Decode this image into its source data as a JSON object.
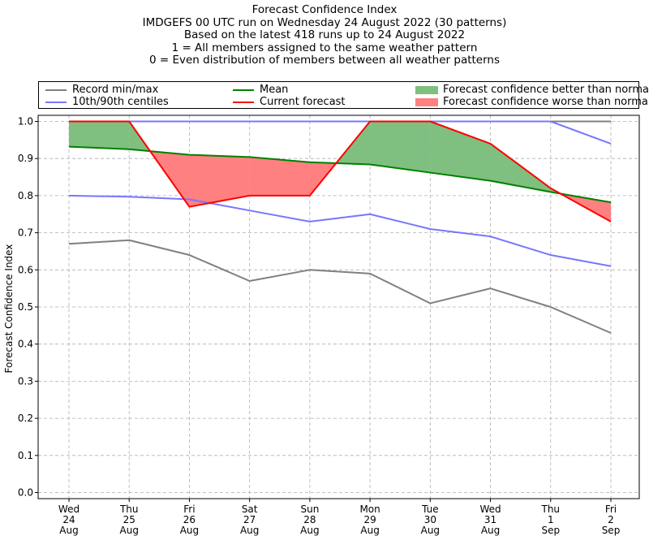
{
  "chart_data": {
    "type": "line",
    "title_lines": [
      "Forecast Confidence Index",
      "IMDGEFS 00 UTC run on Wednesday 24 August 2022 (30 patterns)",
      "Based on the latest 418 runs up to 24 August 2022",
      "1 = All members assigned to the same weather pattern",
      "0 = Even distribution of members between all weather patterns"
    ],
    "ylabel": "Forecast Confidence Index",
    "xlabel": "",
    "ylim": [
      0,
      1.0
    ],
    "yticks": [
      "0.0",
      "0.1",
      "0.2",
      "0.3",
      "0.4",
      "0.5",
      "0.6",
      "0.7",
      "0.8",
      "0.9",
      "1.0"
    ],
    "ytick_values": [
      0,
      0.1,
      0.2,
      0.3,
      0.4,
      0.5,
      0.6,
      0.7,
      0.8,
      0.9,
      1.0
    ],
    "grid": true,
    "categories": [
      [
        "Wed",
        "24",
        "Aug"
      ],
      [
        "Thu",
        "25",
        "Aug"
      ],
      [
        "Fri",
        "26",
        "Aug"
      ],
      [
        "Sat",
        "27",
        "Aug"
      ],
      [
        "Sun",
        "28",
        "Aug"
      ],
      [
        "Mon",
        "29",
        "Aug"
      ],
      [
        "Tue",
        "30",
        "Aug"
      ],
      [
        "Wed",
        "31",
        "Aug"
      ],
      [
        "Thu",
        "1",
        "Sep"
      ],
      [
        "Fri",
        "2",
        "Sep"
      ]
    ],
    "series": [
      {
        "name": "Record max",
        "legend_group": "Record min/max",
        "color": "#808080",
        "values": [
          1.0,
          1.0,
          1.0,
          1.0,
          1.0,
          1.0,
          1.0,
          1.0,
          1.0,
          1.0
        ]
      },
      {
        "name": "Record min",
        "legend_group": "Record min/max",
        "color": "#808080",
        "values": [
          0.67,
          0.68,
          0.64,
          0.57,
          0.6,
          0.59,
          0.51,
          0.55,
          0.5,
          0.43
        ]
      },
      {
        "name": "90th centile",
        "legend_group": "10th/90th centiles",
        "color": "#7777ff",
        "values": [
          1.0,
          1.0,
          1.0,
          1.0,
          1.0,
          1.0,
          1.0,
          1.0,
          1.0,
          0.94
        ]
      },
      {
        "name": "10th centile",
        "legend_group": "10th/90th centiles",
        "color": "#7777ff",
        "values": [
          0.8,
          0.797,
          0.79,
          0.76,
          0.73,
          0.75,
          0.71,
          0.69,
          0.64,
          0.61
        ]
      },
      {
        "name": "Mean",
        "legend_group": "Mean",
        "color": "#008000",
        "values": [
          0.932,
          0.925,
          0.91,
          0.904,
          0.89,
          0.884,
          0.862,
          0.84,
          0.81,
          0.782
        ]
      },
      {
        "name": "Current forecast",
        "legend_group": "Current forecast",
        "color": "#ff0000",
        "values": [
          1.0,
          1.0,
          0.77,
          0.8,
          0.8,
          1.0,
          1.0,
          0.94,
          0.82,
          0.73
        ]
      }
    ],
    "fills": {
      "better": {
        "label": "Forecast confidence better than normal",
        "color": "#7fbf7f"
      },
      "worse": {
        "label": "Forecast confidence worse than normal",
        "color": "#ff8080"
      }
    },
    "legend": [
      {
        "label": "Record min/max",
        "kind": "line",
        "color": "#808080"
      },
      {
        "label": "10th/90th centiles",
        "kind": "line",
        "color": "#7777ff"
      },
      {
        "label": "Mean",
        "kind": "line",
        "color": "#008000"
      },
      {
        "label": "Current forecast",
        "kind": "line",
        "color": "#ff0000"
      },
      {
        "label": "Forecast confidence better than normal",
        "kind": "patch",
        "color": "#7fbf7f"
      },
      {
        "label": "Forecast confidence worse than normal",
        "kind": "patch",
        "color": "#ff8080"
      }
    ],
    "legend_position": "top"
  }
}
